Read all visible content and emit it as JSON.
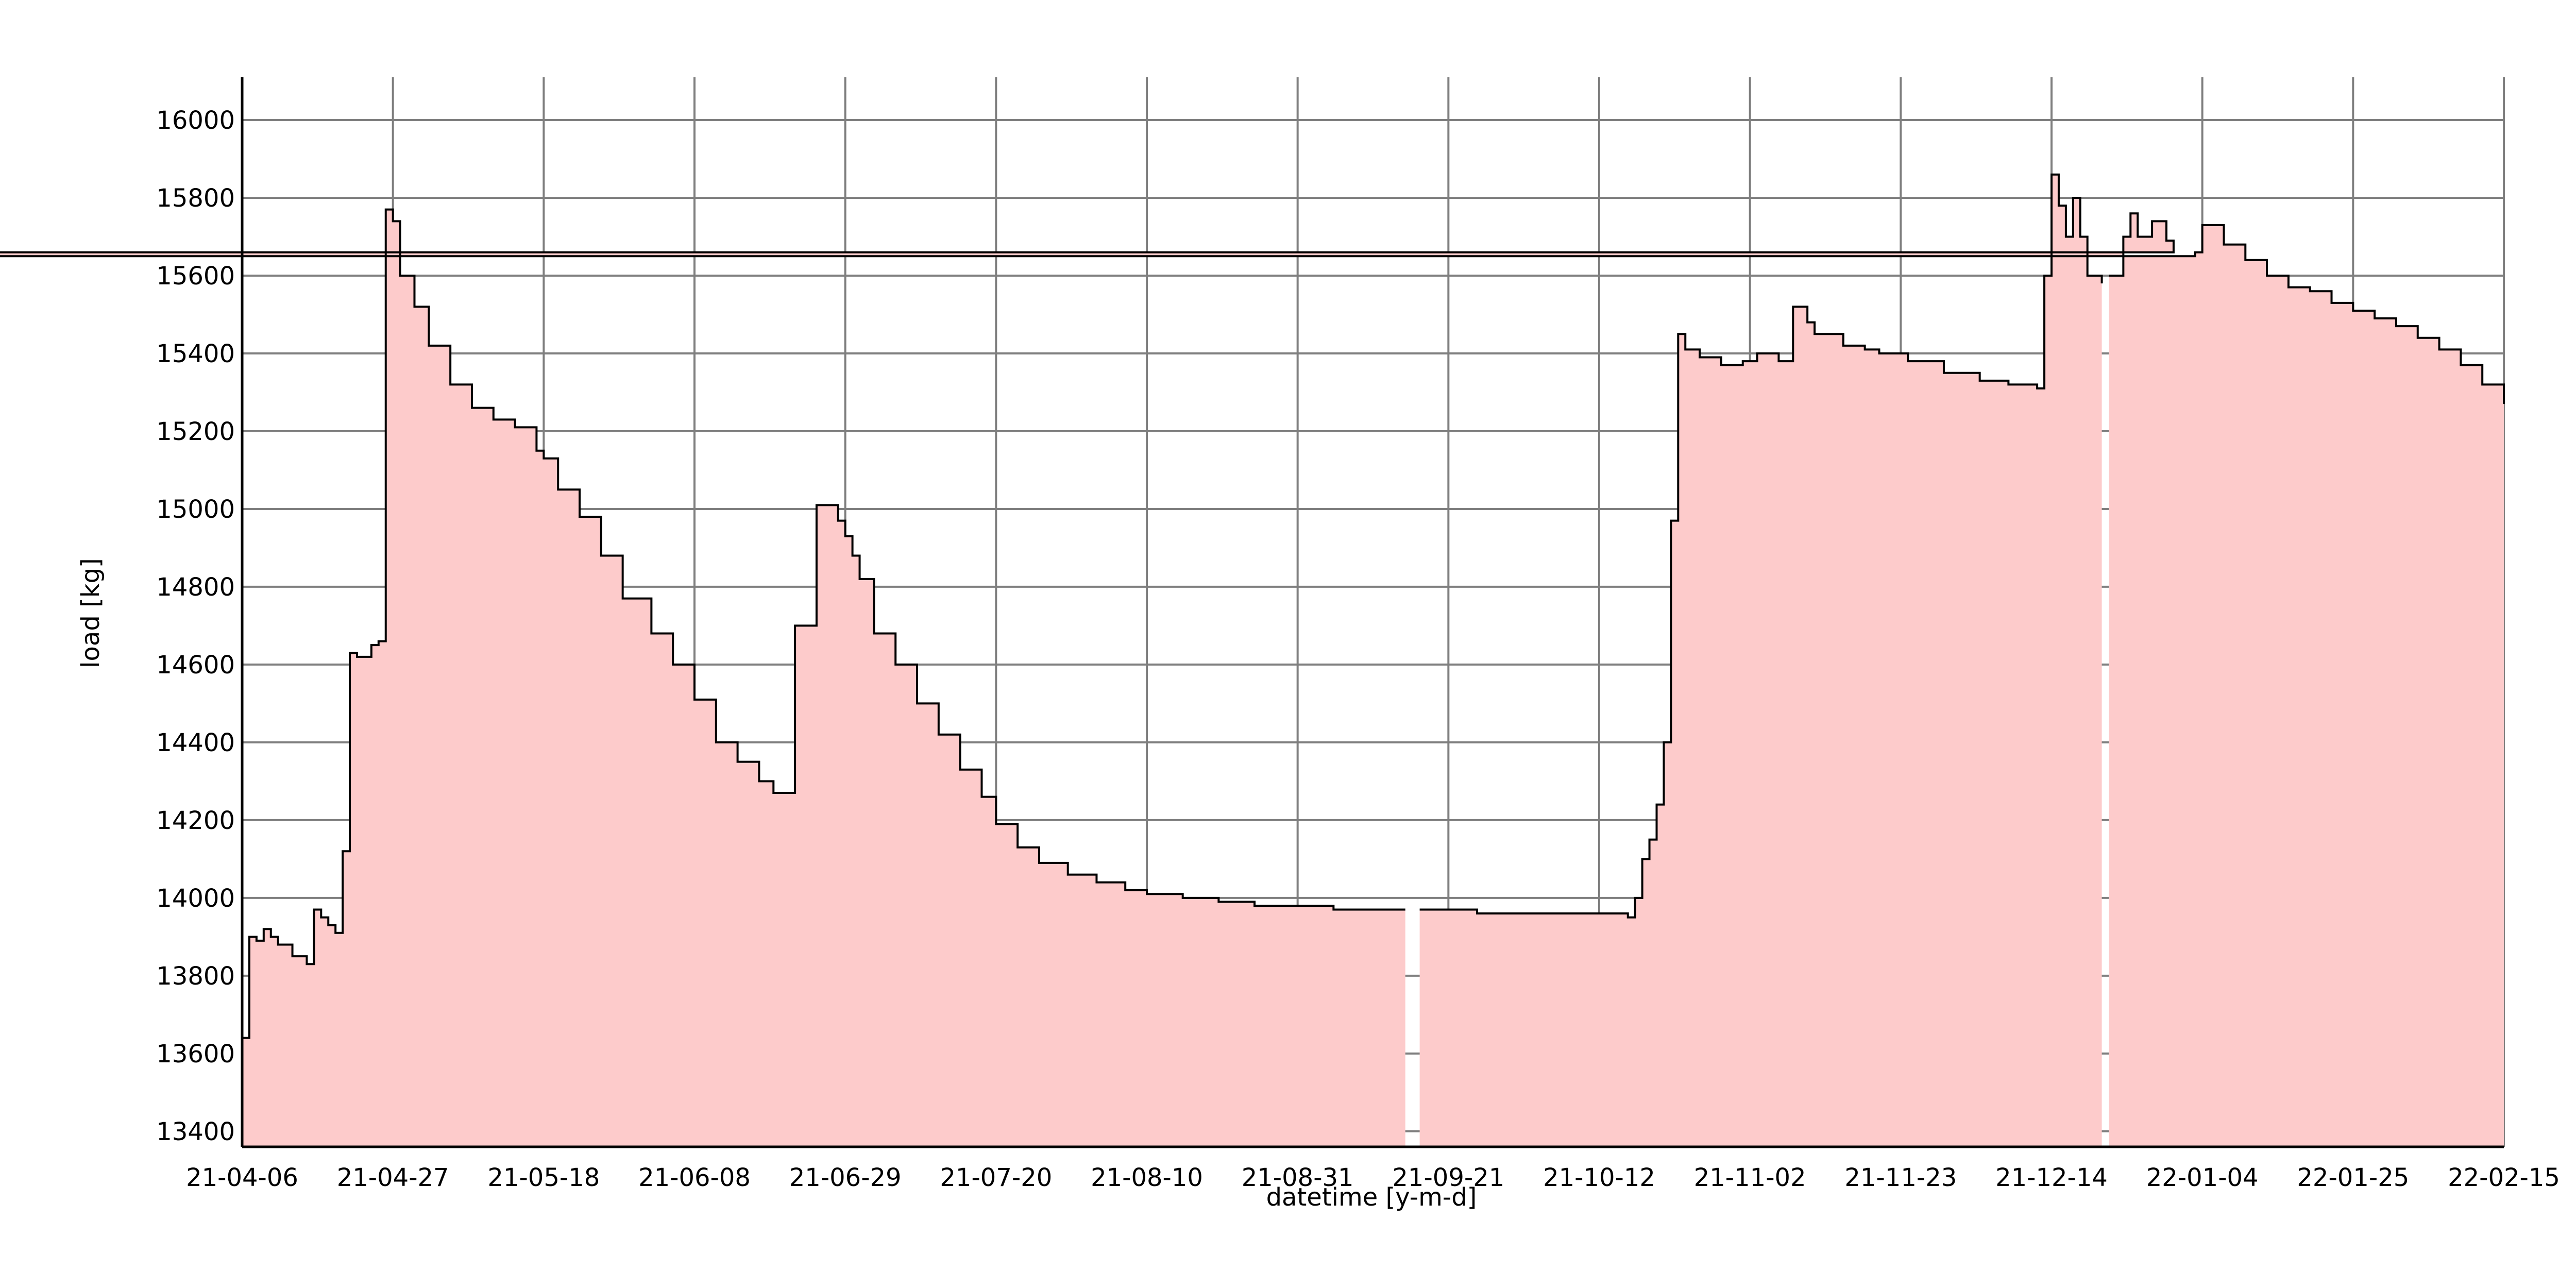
{
  "chart_data": {
    "type": "area",
    "title": "",
    "xlabel": "datetime [y-m-d]",
    "ylabel": "load [kg]",
    "x_ticks": [
      "21-04-06",
      "21-04-27",
      "21-05-18",
      "21-06-08",
      "21-06-29",
      "21-07-20",
      "21-08-10",
      "21-08-31",
      "21-09-21",
      "21-10-12",
      "21-11-02",
      "21-11-23",
      "21-12-14",
      "22-01-04",
      "22-01-25",
      "22-02-15"
    ],
    "y_ticks": [
      13400,
      13600,
      13800,
      14000,
      14200,
      14400,
      14600,
      14800,
      15000,
      15200,
      15400,
      15600,
      15800,
      16000
    ],
    "xlim": [
      "21-04-06",
      "22-02-15"
    ],
    "ylim": [
      13360,
      16110
    ],
    "grid": true,
    "colors": {
      "fill": "#fdcbcb",
      "line": "#000000",
      "grid": "#7f7f7f"
    },
    "series": [
      {
        "segments": [
          {
            "x": [
              "21-04-06",
              "21-04-07",
              "21-04-08",
              "21-04-09",
              "21-04-10",
              "21-04-11",
              "21-04-13",
              "21-04-15",
              "21-04-16",
              "21-04-17",
              "21-04-18",
              "21-04-19",
              "21-04-20",
              "21-04-21",
              "21-04-22",
              "21-04-23",
              "21-04-24",
              "21-04-25",
              "21-04-26",
              "21-04-27",
              "21-04-28",
              "21-04-30",
              "21-05-02",
              "21-05-05",
              "21-05-08",
              "21-05-11",
              "21-05-14",
              "21-05-17",
              "21-05-18",
              "21-05-20",
              "21-05-23",
              "21-05-26",
              "21-05-29",
              "21-06-02",
              "21-06-05",
              "21-06-08",
              "21-06-11",
              "21-06-14",
              "21-06-17",
              "21-06-19",
              "21-06-22",
              "21-06-25",
              "21-06-28",
              "21-06-29",
              "21-06-30",
              "21-07-01",
              "21-07-03",
              "21-07-06",
              "21-07-09",
              "21-07-12",
              "21-07-15",
              "21-07-18",
              "21-07-20",
              "21-07-23",
              "21-07-26",
              "21-07-30",
              "21-08-03",
              "21-08-07",
              "21-08-10",
              "21-08-15",
              "21-08-20",
              "21-08-25",
              "21-08-31",
              "21-09-05",
              "21-09-10",
              "21-09-12",
              "21-09-14",
              "21-09-15"
            ],
            "y": [
              13640,
              13900,
              13890,
              13920,
              13900,
              13880,
              13850,
              13830,
              13970,
              13950,
              13930,
              13910,
              14120,
              14630,
              14620,
              14620,
              14650,
              14660,
              15770,
              15740,
              15600,
              15520,
              15420,
              15320,
              15260,
              15230,
              15210,
              15150,
              15130,
              15050,
              14980,
              14880,
              14770,
              14680,
              14600,
              14510,
              14400,
              14350,
              14300,
              14270,
              14700,
              15010,
              14970,
              14930,
              14880,
              14820,
              14680,
              14600,
              14500,
              14420,
              14330,
              14260,
              14190,
              14130,
              14090,
              14060,
              14040,
              14020,
              14010,
              14000,
              13990,
              13980,
              13980,
              13970,
              13970,
              13970,
              13970,
              13970
            ]
          },
          {
            "x": [
              "21-09-17",
              "21-09-20",
              "21-09-25",
              "21-09-30",
              "21-10-05",
              "21-10-10",
              "21-10-14",
              "21-10-16",
              "21-10-17",
              "21-10-18",
              "21-10-19",
              "21-10-20",
              "21-10-21",
              "21-10-22",
              "21-10-23",
              "21-10-24",
              "21-10-26",
              "21-10-29",
              "21-11-01",
              "21-11-03",
              "21-11-06",
              "21-11-08",
              "21-11-10",
              "21-11-11",
              "21-11-15",
              "21-11-18",
              "21-11-20",
              "21-11-24",
              "21-11-29",
              "21-12-04",
              "21-12-08",
              "21-12-12",
              "21-12-13",
              "21-12-14",
              "21-12-15",
              "21-12-16",
              "21-12-17",
              "21-12-18",
              "21-12-19",
              "21-12-21"
            ],
            "y": [
              13970,
              13970,
              13960,
              13960,
              13960,
              13960,
              13960,
              13950,
              14000,
              14100,
              14150,
              14240,
              14400,
              14970,
              15450,
              15410,
              15390,
              15370,
              15380,
              15400,
              15380,
              15520,
              15480,
              15450,
              15420,
              15410,
              15400,
              15380,
              15350,
              15330,
              15320,
              15310,
              15600,
              15860,
              15780,
              15700,
              15800,
              15700,
              15600,
              15580
            ]
          },
          {
            "x": [
              "21-12-22",
              "21-12-24",
              "21-12-25",
              "21-12-26",
              "21-12-28",
              "21-12-30",
              "21-12-31",
              "21-01-01",
              "22-01-01",
              "22-01-03",
              "22-01-04",
              "22-01-07",
              "22-01-10",
              "22-01-13",
              "22-01-16",
              "22-01-19",
              "22-01-22",
              "22-01-25",
              "22-01-28",
              "22-01-31",
              "22-02-03",
              "22-02-06",
              "22-02-09",
              "22-02-12",
              "22-02-15"
            ],
            "y": [
              15600,
              15700,
              15760,
              15700,
              15740,
              15690,
              15660,
              15650,
              15650,
              15660,
              15730,
              15680,
              15640,
              15600,
              15570,
              15560,
              15530,
              15510,
              15490,
              15470,
              15440,
              15410,
              15370,
              15320,
              15270
            ]
          }
        ]
      }
    ]
  }
}
